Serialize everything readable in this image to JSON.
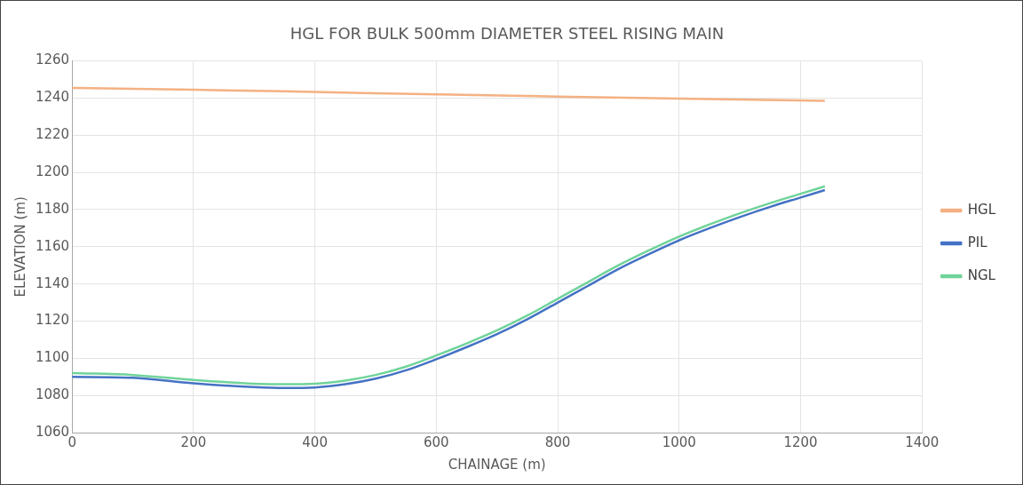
{
  "chart_data": {
    "type": "line",
    "title": "HGL FOR BULK 500mm DIAMETER STEEL RISING MAIN",
    "xlabel": "CHAINAGE (m)",
    "ylabel": "ELEVATION (m)",
    "xlim": [
      0,
      1400
    ],
    "xticks": [
      0,
      200,
      400,
      600,
      800,
      1000,
      1200,
      1400
    ],
    "ylim": [
      1060,
      1260
    ],
    "yticks": [
      1060,
      1080,
      1100,
      1120,
      1140,
      1160,
      1180,
      1200,
      1220,
      1240,
      1260
    ],
    "grid": true,
    "legend": "right",
    "marker": "none",
    "line_style": "solid",
    "series": [
      {
        "name": "HGL",
        "color": "#f4b183",
        "x": [
          0,
          200,
          400,
          600,
          800,
          1000,
          1240
        ],
        "values": [
          1245.5,
          1244.5,
          1243.3,
          1242,
          1240.8,
          1239.7,
          1238.5
        ]
      },
      {
        "name": "PIL",
        "color": "#4472c4",
        "x": [
          0,
          100,
          200,
          300,
          350,
          400,
          450,
          500,
          550,
          600,
          650,
          700,
          750,
          800,
          850,
          900,
          950,
          1000,
          1050,
          1100,
          1150,
          1200,
          1240
        ],
        "values": [
          1090,
          1089.5,
          1086.5,
          1084.5,
          1084,
          1084.3,
          1086,
          1089,
          1093.5,
          1099.5,
          1106,
          1113,
          1121,
          1130,
          1139,
          1148,
          1156,
          1163.5,
          1170,
          1176,
          1181.5,
          1186.5,
          1190.5
        ]
      },
      {
        "name": "NGL",
        "color": "#70d39a",
        "x": [
          0,
          100,
          200,
          300,
          350,
          400,
          450,
          500,
          550,
          600,
          650,
          700,
          750,
          800,
          850,
          900,
          950,
          1000,
          1050,
          1100,
          1150,
          1200,
          1240
        ],
        "values": [
          1092,
          1091,
          1088.3,
          1086.3,
          1086,
          1086.3,
          1088,
          1091,
          1095.5,
          1101.5,
          1108,
          1115,
          1123,
          1132,
          1141,
          1150,
          1158,
          1165.5,
          1172,
          1178,
          1183.5,
          1188.5,
          1192.5
        ]
      }
    ]
  }
}
